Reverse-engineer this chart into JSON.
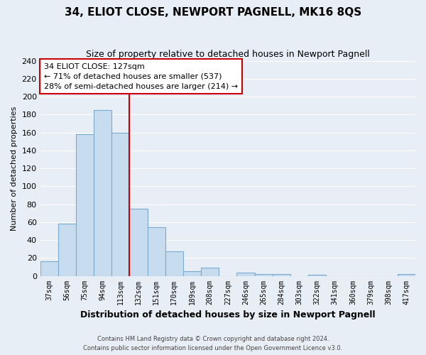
{
  "title": "34, ELIOT CLOSE, NEWPORT PAGNELL, MK16 8QS",
  "subtitle": "Size of property relative to detached houses in Newport Pagnell",
  "xlabel": "Distribution of detached houses by size in Newport Pagnell",
  "ylabel": "Number of detached properties",
  "bar_labels": [
    "37sqm",
    "56sqm",
    "75sqm",
    "94sqm",
    "113sqm",
    "132sqm",
    "151sqm",
    "170sqm",
    "189sqm",
    "208sqm",
    "227sqm",
    "246sqm",
    "265sqm",
    "284sqm",
    "303sqm",
    "322sqm",
    "341sqm",
    "360sqm",
    "379sqm",
    "398sqm",
    "417sqm"
  ],
  "bar_values": [
    16,
    58,
    158,
    185,
    160,
    75,
    54,
    27,
    5,
    9,
    0,
    4,
    2,
    2,
    0,
    1,
    0,
    0,
    0,
    0,
    2
  ],
  "bar_color": "#c8dcf0",
  "bar_edge_color": "#7aabcf",
  "vline_x": 4.5,
  "vline_color": "#cc0000",
  "ylim": [
    0,
    240
  ],
  "yticks": [
    0,
    20,
    40,
    60,
    80,
    100,
    120,
    140,
    160,
    180,
    200,
    220,
    240
  ],
  "annotation_title": "34 ELIOT CLOSE: 127sqm",
  "annotation_line1": "← 71% of detached houses are smaller (537)",
  "annotation_line2": "28% of semi-detached houses are larger (214) →",
  "annotation_box_color": "#ffffff",
  "annotation_box_edge": "#cc0000",
  "footer1": "Contains HM Land Registry data © Crown copyright and database right 2024.",
  "footer2": "Contains public sector information licensed under the Open Government Licence v3.0.",
  "bg_color": "#e8eef5",
  "grid_color": "#ffffff"
}
